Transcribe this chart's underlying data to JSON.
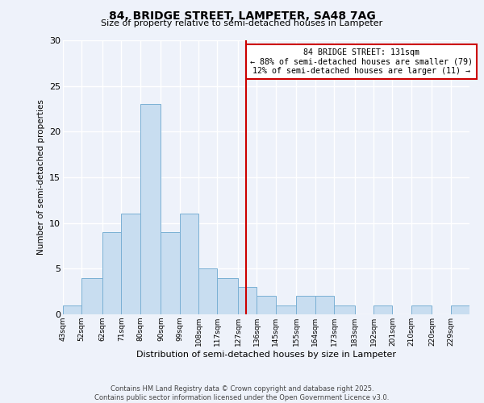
{
  "title": "84, BRIDGE STREET, LAMPETER, SA48 7AG",
  "subtitle": "Size of property relative to semi-detached houses in Lampeter",
  "xlabel": "Distribution of semi-detached houses by size in Lampeter",
  "ylabel": "Number of semi-detached properties",
  "bin_labels": [
    "43sqm",
    "52sqm",
    "62sqm",
    "71sqm",
    "80sqm",
    "90sqm",
    "99sqm",
    "108sqm",
    "117sqm",
    "127sqm",
    "136sqm",
    "145sqm",
    "155sqm",
    "164sqm",
    "173sqm",
    "183sqm",
    "192sqm",
    "201sqm",
    "210sqm",
    "220sqm",
    "229sqm"
  ],
  "bin_edges": [
    43,
    52,
    62,
    71,
    80,
    90,
    99,
    108,
    117,
    127,
    136,
    145,
    155,
    164,
    173,
    183,
    192,
    201,
    210,
    220,
    229
  ],
  "counts": [
    1,
    4,
    9,
    11,
    23,
    9,
    11,
    5,
    4,
    3,
    2,
    1,
    2,
    2,
    1,
    0,
    1,
    0,
    1,
    0,
    1
  ],
  "bar_color": "#c8ddf0",
  "bar_edge_color": "#7ab0d4",
  "property_value": 131,
  "vline_color": "#cc0000",
  "annotation_title": "84 BRIDGE STREET: 131sqm",
  "annotation_line1": "← 88% of semi-detached houses are smaller (79)",
  "annotation_line2": "12% of semi-detached houses are larger (11) →",
  "ylim": [
    0,
    30
  ],
  "background_color": "#eef2fa",
  "grid_color": "#ffffff",
  "footer1": "Contains HM Land Registry data © Crown copyright and database right 2025.",
  "footer2": "Contains public sector information licensed under the Open Government Licence v3.0."
}
